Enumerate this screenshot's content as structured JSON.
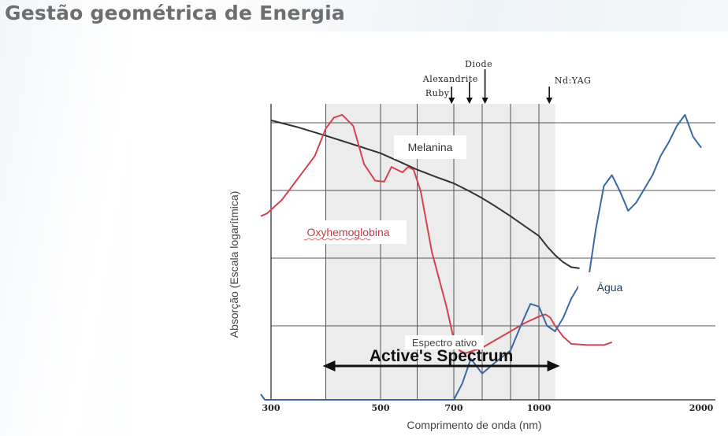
{
  "slide": {
    "title": "Gestão geométrica de Energia"
  },
  "chart_data": {
    "type": "line",
    "title": "",
    "xlabel": "Comprimento de onda (nm)",
    "ylabel": "Absorção (Escala logarítmica)",
    "x_ticks": [
      {
        "value": 300,
        "label": "300"
      },
      {
        "value": 500,
        "label": "500"
      },
      {
        "value": 700,
        "label": "700"
      },
      {
        "value": 1000,
        "label": "1000"
      },
      {
        "value": 2000,
        "label": "2000"
      }
    ],
    "log_scale_y": true,
    "grid": true,
    "lasers": [
      {
        "name": "Ruby",
        "wavelength": 694
      },
      {
        "name": "Alexandrite",
        "wavelength": 755
      },
      {
        "name": "Diode",
        "wavelength": 810
      },
      {
        "name": "Nd:YAG",
        "wavelength": 1064
      }
    ],
    "active_spectrum": {
      "range": [
        400,
        1100
      ],
      "english_label": "Active's Spectrum",
      "label": "Espectro ativo"
    },
    "series": [
      {
        "name": "Melanina",
        "color": "#333333",
        "x": [
          300,
          350,
          400,
          450,
          500,
          550,
          600,
          650,
          700,
          750,
          800,
          850,
          900,
          950,
          1000,
          1050,
          1100,
          1150,
          1200,
          1250
        ],
        "y": [
          4.0,
          3.87,
          3.72,
          3.56,
          3.4,
          3.25,
          3.1,
          2.97,
          2.85,
          2.72,
          2.58,
          2.42,
          2.25,
          2.07,
          1.89,
          1.7,
          1.54,
          1.41,
          1.32,
          1.3
        ]
      },
      {
        "name": "Oxyhemoglobina",
        "color": "#d2424f",
        "x": [
          250,
          280,
          320,
          380,
          400,
          415,
          430,
          450,
          470,
          490,
          510,
          530,
          545,
          560,
          575,
          590,
          610,
          640,
          680,
          700,
          720,
          740,
          760,
          800,
          850,
          900,
          950,
          1000,
          1040,
          1070,
          1100,
          1150,
          1200,
          1300,
          1400,
          1450
        ],
        "y": [
          2.25,
          2.3,
          2.55,
          3.35,
          3.85,
          4.05,
          4.1,
          3.9,
          3.2,
          2.9,
          2.88,
          3.15,
          3.1,
          3.05,
          3.15,
          3.1,
          2.7,
          1.6,
          0.6,
          0.0,
          -0.2,
          -0.25,
          -0.22,
          -0.15,
          0.0,
          0.15,
          0.3,
          0.42,
          0.46,
          0.4,
          0.25,
          0.05,
          -0.08,
          -0.1,
          -0.1,
          -0.05
        ]
      },
      {
        "name": "Água",
        "color": "#3a68a4",
        "x": [
          250,
          270,
          700,
          730,
          760,
          800,
          850,
          900,
          940,
          970,
          1000,
          1050,
          1100,
          1150,
          1200,
          1250,
          1300,
          1350,
          1400,
          1450,
          1500,
          1550,
          1600,
          1650,
          1700,
          1750,
          1800,
          1850,
          1900,
          1950,
          2000
        ],
        "y": [
          -1.0,
          -1.1,
          -1.1,
          -0.8,
          -0.35,
          -0.62,
          -0.4,
          -0.2,
          0.3,
          0.65,
          0.6,
          0.25,
          0.15,
          0.4,
          0.75,
          1.0,
          1.0,
          2.0,
          2.8,
          3.0,
          2.7,
          2.35,
          2.5,
          2.75,
          3.0,
          3.35,
          3.6,
          3.9,
          4.1,
          3.7,
          3.5
        ]
      }
    ]
  }
}
